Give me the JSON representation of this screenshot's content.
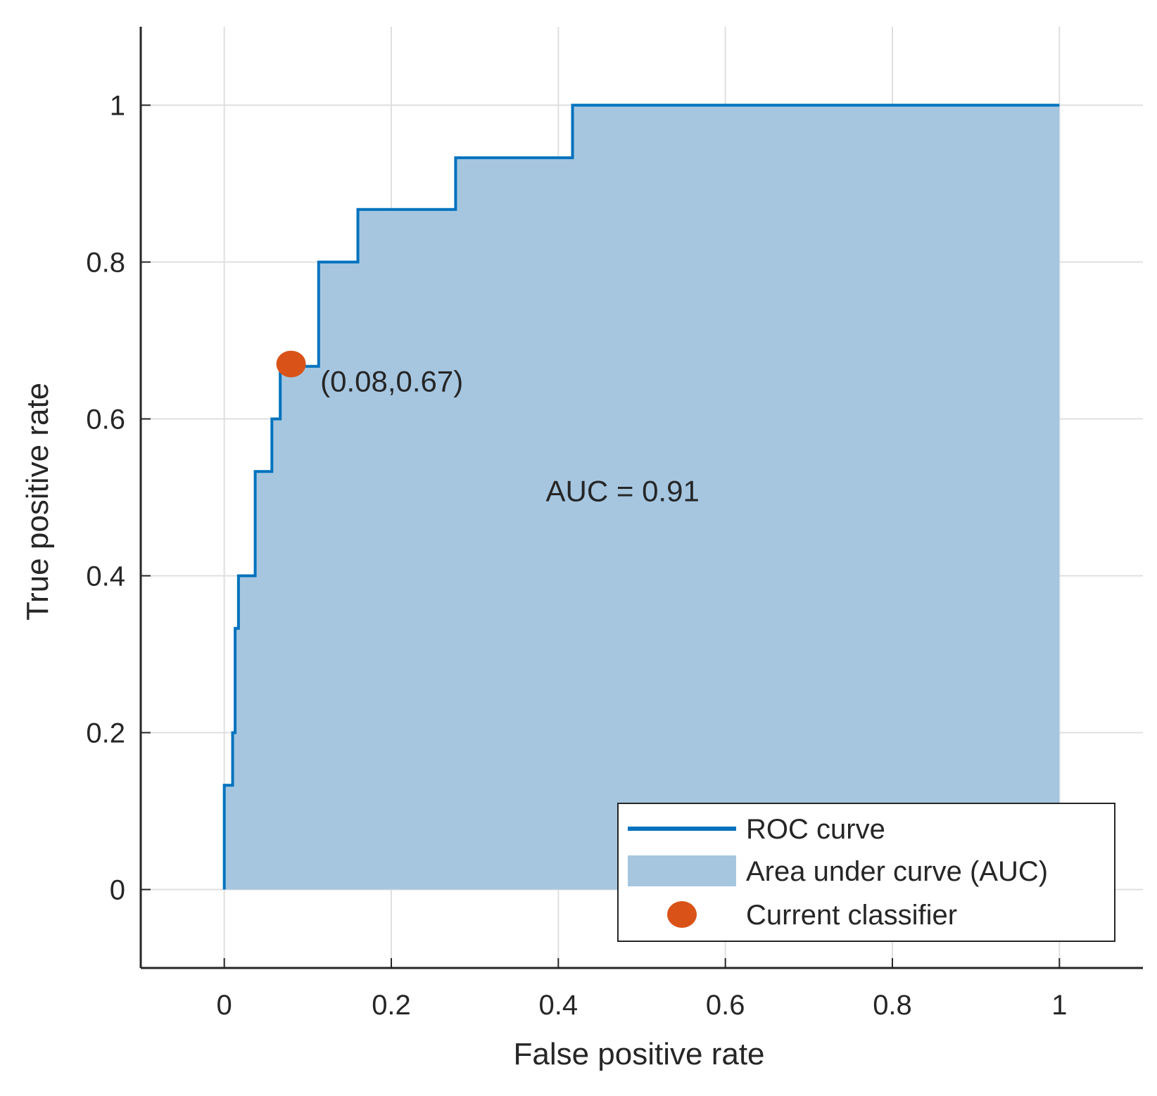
{
  "chart_data": {
    "type": "area",
    "title": "",
    "xlabel": "False positive rate",
    "ylabel": "True positive rate",
    "xlim": [
      -0.1,
      1.1
    ],
    "ylim": [
      -0.1,
      1.1
    ],
    "xticks": [
      0,
      0.2,
      0.4,
      0.6,
      0.8,
      1
    ],
    "yticks": [
      0,
      0.2,
      0.4,
      0.6,
      0.8,
      1
    ],
    "xtick_labels": [
      "0",
      "0.2",
      "0.4",
      "0.6",
      "0.8",
      "1"
    ],
    "ytick_labels": [
      "0",
      "0.2",
      "0.4",
      "0.6",
      "0.8",
      "1"
    ],
    "grid": true,
    "legend_position": "bottom-right",
    "series": [
      {
        "name": "ROC curve",
        "style": "step-line",
        "color": "#0072BD",
        "x": [
          0,
          0,
          0.01,
          0.01,
          0.013,
          0.013,
          0.017,
          0.017,
          0.037,
          0.037,
          0.057,
          0.057,
          0.067,
          0.067,
          0.073,
          0.073,
          0.08,
          0.08,
          0.113,
          0.113,
          0.16,
          0.16,
          0.277,
          0.277,
          0.417,
          0.417,
          1
        ],
        "y": [
          0,
          0.133,
          0.133,
          0.2,
          0.2,
          0.333,
          0.333,
          0.4,
          0.4,
          0.533,
          0.533,
          0.6,
          0.6,
          0.667,
          0.667,
          0.667,
          0.667,
          0.667,
          0.667,
          0.8,
          0.8,
          0.867,
          0.867,
          0.933,
          0.933,
          1,
          1
        ]
      },
      {
        "name": "Area under curve (AUC)",
        "style": "fill",
        "color": "#A6C6E0"
      },
      {
        "name": "Current classifier",
        "style": "point",
        "color": "#D95319",
        "x": [
          0.08
        ],
        "y": [
          0.67
        ]
      }
    ],
    "annotations": [
      {
        "text": "(0.08,0.67)",
        "x": 0.115,
        "y": 0.635
      },
      {
        "text": "AUC = 0.91",
        "x": 0.385,
        "y": 0.495
      }
    ]
  }
}
